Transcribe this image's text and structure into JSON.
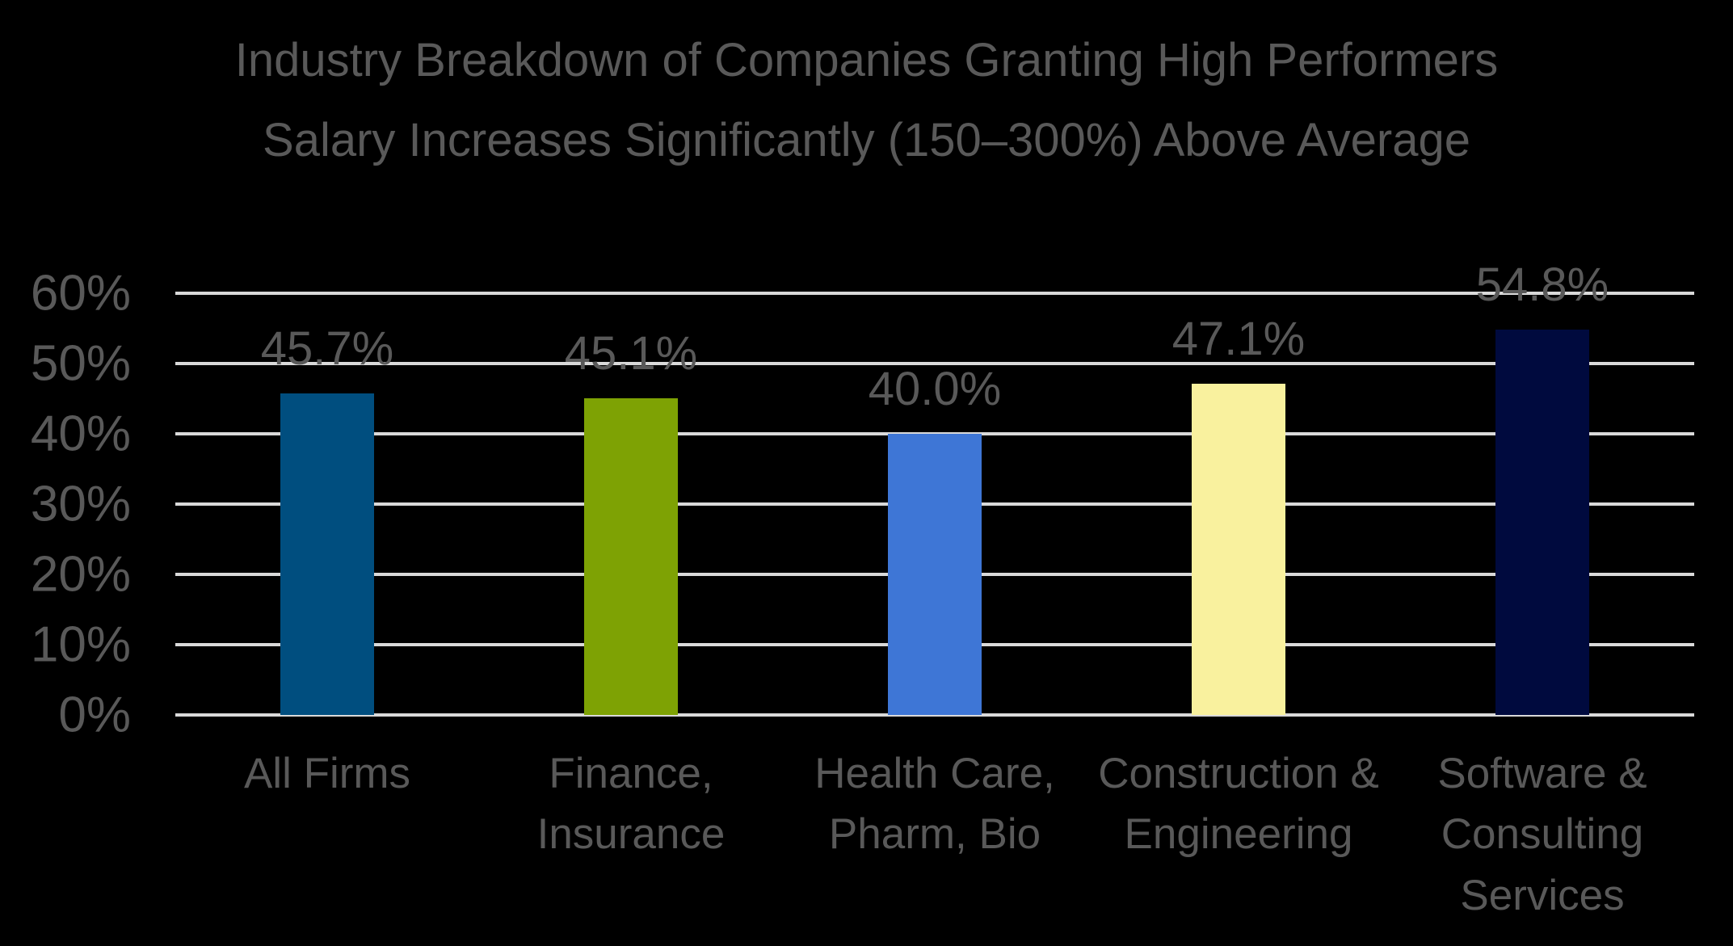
{
  "chart_data": {
    "type": "bar",
    "title": "Industry Breakdown of Companies Granting High Performers Salary Increases Significantly (150–300%) Above Average",
    "categories": [
      "All Firms",
      "Finance, Insurance",
      "Health Care, Pharm, Bio",
      "Construction & Engineering",
      "Software & Consulting Services"
    ],
    "values": [
      45.7,
      45.1,
      40,
      47.1,
      54.8
    ],
    "data_labels": [
      "45.7%",
      "45.1%",
      "40.0%",
      "47.1%",
      "54.8%"
    ],
    "bar_colors": [
      "#004E7F",
      "#7EA204",
      "#3E76D6",
      "#F9F19E",
      "#000A3E"
    ],
    "yticks": [
      "0%",
      "10%",
      "20%",
      "30%",
      "40%",
      "50%",
      "60%"
    ],
    "ytick_values": [
      0,
      10,
      20,
      30,
      40,
      50,
      60
    ],
    "ylim": [
      0,
      60
    ],
    "xlabel": "",
    "ylabel": "",
    "grid": true,
    "legend_position": "none",
    "background_color": "#000000",
    "text_color": "#595959",
    "gridline_color": "#D9D9D9"
  }
}
